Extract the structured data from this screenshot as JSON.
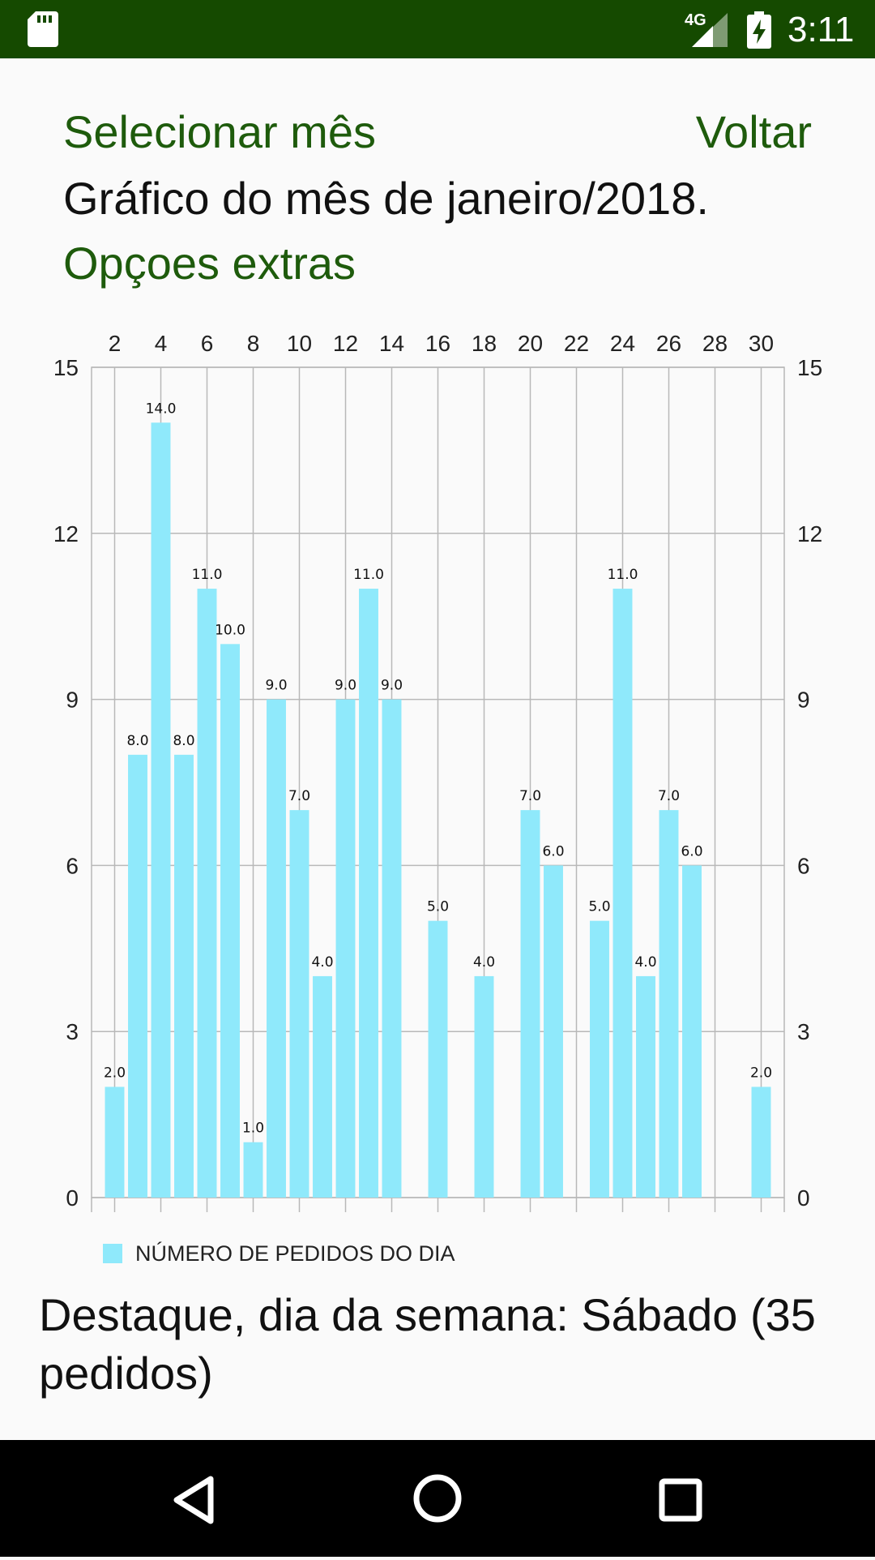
{
  "status_bar": {
    "network": "4G",
    "time": "3:11",
    "icons": [
      "sd-card-icon",
      "signal-icon",
      "battery-charging-icon"
    ]
  },
  "header": {
    "select_month": "Selecionar mês",
    "back": "Voltar",
    "chart_heading": "Gráfico do mês de janeiro/2018.",
    "extra_options": "Opçoes extras"
  },
  "highlight_text": "Destaque, dia da semana: Sábado (35 pedidos)",
  "colors": {
    "status_bar": "#154a00",
    "link": "#1e5b0c",
    "bar": "#8fe9fb",
    "grid": "#b8b8b8"
  },
  "nav_bar": {
    "icons": [
      "back-triangle-icon",
      "home-circle-icon",
      "recents-square-icon"
    ]
  },
  "chart_data": {
    "type": "bar",
    "title": "",
    "xlabel": "",
    "ylabel": "",
    "x_axis_position": "top",
    "xlim": [
      1,
      31
    ],
    "x_ticks": [
      2,
      4,
      6,
      8,
      10,
      12,
      14,
      16,
      18,
      20,
      22,
      24,
      26,
      28,
      30
    ],
    "ylim": [
      0,
      15
    ],
    "y_ticks": [
      0,
      3,
      6,
      9,
      12,
      15
    ],
    "grid": true,
    "legend_placement": "bottom-left",
    "series": [
      {
        "name": "NÚMERO DE PEDIDOS DO DIA",
        "color": "#8fe9fb",
        "points": [
          {
            "x": 2,
            "y": 2,
            "label": "2.0"
          },
          {
            "x": 3,
            "y": 8,
            "label": "8.0"
          },
          {
            "x": 4,
            "y": 14,
            "label": "14.0"
          },
          {
            "x": 5,
            "y": 8,
            "label": "8.0"
          },
          {
            "x": 6,
            "y": 11,
            "label": "11.0"
          },
          {
            "x": 7,
            "y": 10,
            "label": "10.0"
          },
          {
            "x": 8,
            "y": 1,
            "label": "1.0"
          },
          {
            "x": 9,
            "y": 9,
            "label": "9.0"
          },
          {
            "x": 10,
            "y": 7,
            "label": "7.0"
          },
          {
            "x": 11,
            "y": 4,
            "label": "4.0"
          },
          {
            "x": 12,
            "y": 9,
            "label": "9.0"
          },
          {
            "x": 13,
            "y": 11,
            "label": "11.0"
          },
          {
            "x": 14,
            "y": 9,
            "label": "9.0"
          },
          {
            "x": 16,
            "y": 5,
            "label": "5.0"
          },
          {
            "x": 18,
            "y": 4,
            "label": "4.0"
          },
          {
            "x": 20,
            "y": 7,
            "label": "7.0"
          },
          {
            "x": 21,
            "y": 6,
            "label": "6.0"
          },
          {
            "x": 23,
            "y": 5,
            "label": "5.0"
          },
          {
            "x": 24,
            "y": 11,
            "label": "11.0"
          },
          {
            "x": 25,
            "y": 4,
            "label": "4.0"
          },
          {
            "x": 26,
            "y": 7,
            "label": "7.0"
          },
          {
            "x": 27,
            "y": 6,
            "label": "6.0"
          },
          {
            "x": 30,
            "y": 2,
            "label": "2.0"
          }
        ]
      }
    ]
  }
}
